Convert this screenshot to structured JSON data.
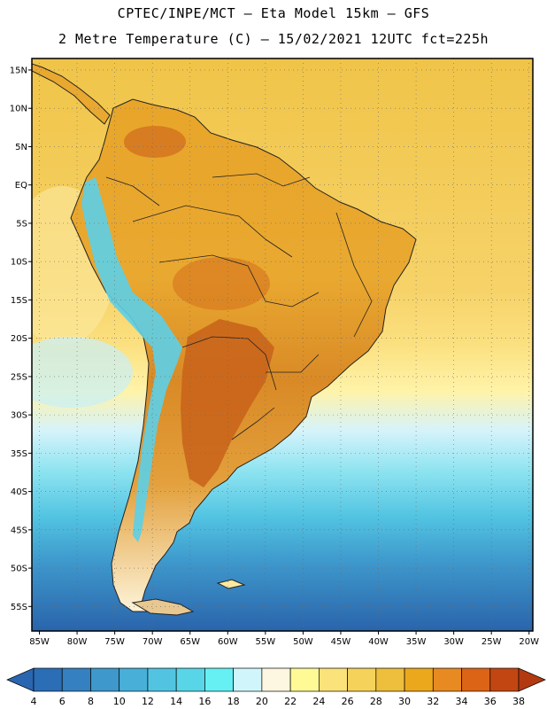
{
  "header": {
    "line1": "CPTEC/INPE/MCT –  Eta Model 15km – GFS",
    "line2": "2 Metre Temperature (C) – 15/02/2021 12UTC fct=225h"
  },
  "map": {
    "lon_min": -86,
    "lon_max": -19.5,
    "lat_min": -58.2,
    "lat_max": 16.5,
    "lat_ticks": [
      {
        "value": 15,
        "label": "15N"
      },
      {
        "value": 10,
        "label": "10N"
      },
      {
        "value": 5,
        "label": "5N"
      },
      {
        "value": 0,
        "label": "EQ"
      },
      {
        "value": -5,
        "label": "5S"
      },
      {
        "value": -10,
        "label": "10S"
      },
      {
        "value": -15,
        "label": "15S"
      },
      {
        "value": -20,
        "label": "20S"
      },
      {
        "value": -25,
        "label": "25S"
      },
      {
        "value": -30,
        "label": "30S"
      },
      {
        "value": -35,
        "label": "35S"
      },
      {
        "value": -40,
        "label": "40S"
      },
      {
        "value": -45,
        "label": "45S"
      },
      {
        "value": -50,
        "label": "50S"
      },
      {
        "value": -55,
        "label": "55S"
      }
    ],
    "lon_ticks": [
      {
        "value": -85,
        "label": "85W"
      },
      {
        "value": -80,
        "label": "80W"
      },
      {
        "value": -75,
        "label": "75W"
      },
      {
        "value": -70,
        "label": "70W"
      },
      {
        "value": -65,
        "label": "65W"
      },
      {
        "value": -60,
        "label": "60W"
      },
      {
        "value": -55,
        "label": "55W"
      },
      {
        "value": -50,
        "label": "50W"
      },
      {
        "value": -45,
        "label": "45W"
      },
      {
        "value": -40,
        "label": "40W"
      },
      {
        "value": -35,
        "label": "35W"
      },
      {
        "value": -30,
        "label": "30W"
      },
      {
        "value": -25,
        "label": "25W"
      },
      {
        "value": -20,
        "label": "20W"
      }
    ]
  },
  "colorbar": {
    "labels": [
      "4",
      "6",
      "8",
      "10",
      "12",
      "14",
      "16",
      "18",
      "20",
      "22",
      "24",
      "26",
      "28",
      "30",
      "32",
      "34",
      "36",
      "38"
    ],
    "low_color": "#2a66b0",
    "high_color": "#b33a10",
    "colors": [
      "#2c6eb5",
      "#3580c0",
      "#3e98cc",
      "#48b0d8",
      "#52c4e2",
      "#58d6e8",
      "#66f0f4",
      "#d0f6fc",
      "#fdf6e0",
      "#fffa96",
      "#fbe27a",
      "#f5d35a",
      "#eebf3c",
      "#eca81c",
      "#e88a22",
      "#dc6416",
      "#c24612"
    ]
  }
}
